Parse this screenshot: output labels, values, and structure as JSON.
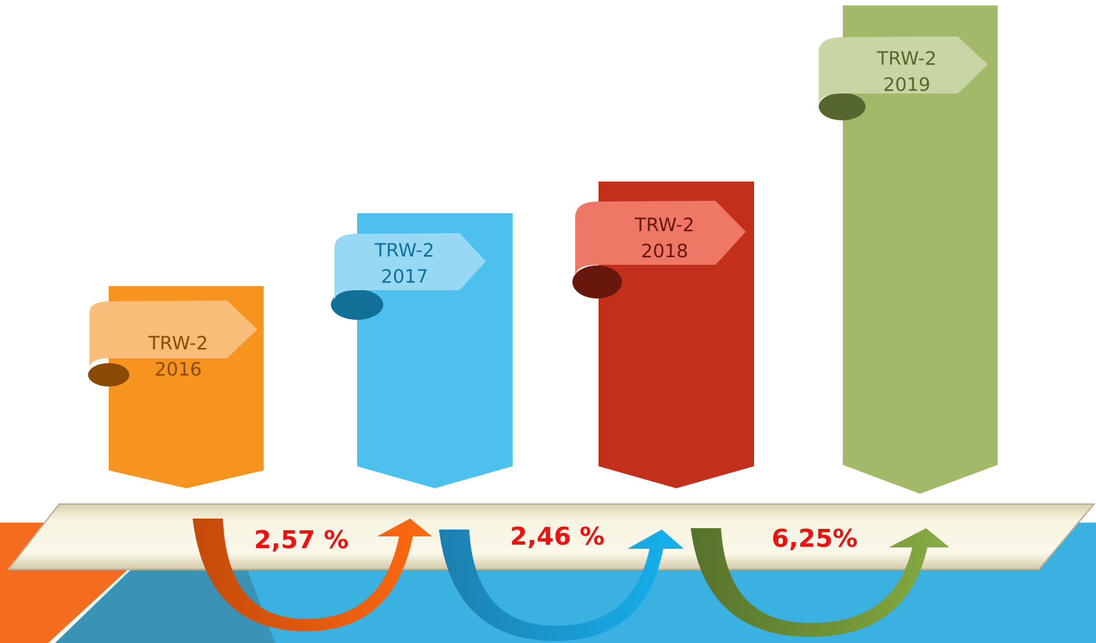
{
  "colors": {
    "background": "#ffffff",
    "bottom_blue": "#3ab1e0",
    "bottom_orange": "#f46d1e",
    "bottom_teal": "#3a93b5",
    "band_fill": "#f4efd7",
    "band_edge": "#b9b191",
    "percent_text": "#ee1111"
  },
  "bars": [
    {
      "label_line1": "TRW-2",
      "label_line2": "2016",
      "color": "#f7941f",
      "ribbon": "#f8bd78",
      "ribbon_fold": "#8a4a06",
      "text_color": "#8a4a06"
    },
    {
      "label_line1": "TRW-2",
      "label_line2": "2017",
      "color": "#4dc0ee",
      "ribbon": "#97d9f5",
      "ribbon_fold": "#116f98",
      "text_color": "#116f98"
    },
    {
      "label_line1": "TRW-2",
      "label_line2": "2018",
      "color": "#c2301b",
      "ribbon": "#ee7766",
      "ribbon_fold": "#67170c",
      "text_color": "#67170c"
    },
    {
      "label_line1": "TRW-2",
      "label_line2": "2019",
      "color": "#a3b96a",
      "ribbon": "#c8d6a6",
      "ribbon_fold": "#55662e",
      "text_color": "#55662e"
    }
  ],
  "growth": [
    {
      "label": "2,57 %",
      "arrow_dark": "#c34a0a",
      "arrow_light": "#ff6a10"
    },
    {
      "label": "2,46 %",
      "arrow_dark": "#1d7fae",
      "arrow_light": "#15b1ef"
    },
    {
      "label": "6,25%",
      "arrow_dark": "#56722b",
      "arrow_light": "#87ad42"
    }
  ]
}
